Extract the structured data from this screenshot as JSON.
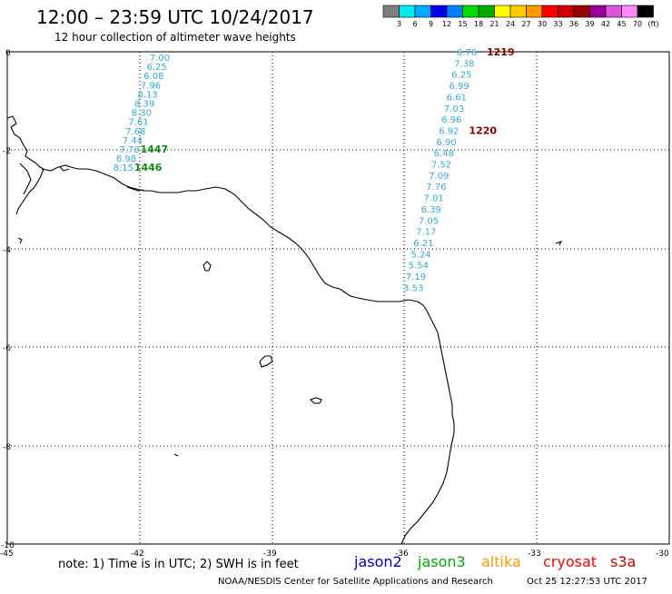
{
  "header": {
    "title": "12:00 – 23:59 UTC 10/24/2017",
    "subtitle": "12 hour collection of altimeter wave heights"
  },
  "legend": {
    "colors": [
      "#808080",
      "#00eeee",
      "#00aaff",
      "#0000ee",
      "#0080ff",
      "#00dd00",
      "#00aa00",
      "#ffff00",
      "#ffcc00",
      "#ff9900",
      "#ff0000",
      "#cc0000",
      "#990000",
      "#990099",
      "#dd55dd",
      "#ff88ff",
      "#000000"
    ],
    "labels": [
      "3",
      "6",
      "9",
      "12",
      "15",
      "18",
      "21",
      "24",
      "27",
      "30",
      "33",
      "36",
      "39",
      "42",
      "45",
      "70"
    ],
    "unit": "(ft)"
  },
  "axes": {
    "lat_labels": [
      "0",
      "-2",
      "-4",
      "-6",
      "-8",
      "-10"
    ],
    "lon_labels": [
      "-45",
      "-42",
      "-39",
      "-36",
      "-33",
      "-30"
    ]
  },
  "tracks": [
    {
      "values": [
        "7.00",
        "6.25",
        "6.08",
        "7.96",
        "8.13",
        "8.39",
        "8.30",
        "7.61",
        "7.68",
        "7.44",
        "7.78",
        "6.98",
        "8.15"
      ],
      "color": "#33aadd",
      "time_labels": [
        {
          "text": "1447",
          "color": "#118811",
          "after_index": 10
        },
        {
          "text": "1446",
          "color": "#118811",
          "after_index": 12
        }
      ]
    },
    {
      "values": [
        "6.76",
        "7.38",
        "6.25",
        "6.99",
        "6.61",
        "7.03",
        "6.96",
        "6.92",
        "6.90",
        "6.48",
        "7.52",
        "7.09",
        "7.76",
        "7.01",
        "6.39",
        "7.05",
        "7.17",
        "6.21",
        "5.24",
        "5.54",
        "7.19",
        "3.53"
      ],
      "color": "#33aadd",
      "time_labels": [
        {
          "text": "1219",
          "color": "#880000",
          "after_index": 0
        },
        {
          "text": "1220",
          "color": "#880000",
          "after_index": 7
        }
      ]
    }
  ],
  "footer": {
    "note": "note: 1) Time is in UTC; 2) SWH is in feet",
    "satellites": [
      {
        "name": "jason2",
        "color": "#0000cc"
      },
      {
        "name": "jason3",
        "color": "#00aa00"
      },
      {
        "name": "altika",
        "color": "#ff9900"
      },
      {
        "name": "cryosat",
        "color": "#ff0000"
      },
      {
        "name": "s3a",
        "color": "#cc0000"
      }
    ],
    "credit": "NOAA/NESDIS Center for Satellite Applications and Research",
    "timestamp": "Oct 25 12:27:53 UTC 2017"
  }
}
